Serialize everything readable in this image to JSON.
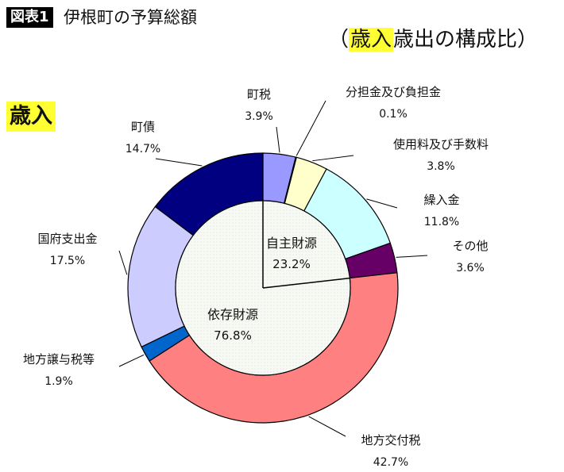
{
  "figure_label": "図表1",
  "title": "伊根町の予算総額",
  "subtitle": {
    "open_paren": "（",
    "highlight": "歳入",
    "rest": "歳出の構成比）"
  },
  "section_label": "歳入",
  "chart_data": {
    "type": "pie",
    "variant": "donut",
    "direction": "clockwise",
    "start_angle": "12 o'clock",
    "slices": [
      {
        "label": "町税",
        "value": 3.9,
        "value_label": "3.9%",
        "color": "#9999ff"
      },
      {
        "label": "分担金及び負担金",
        "value": 0.1,
        "value_label": "0.1%",
        "color": "#993366"
      },
      {
        "label": "使用料及び手数料",
        "value": 3.8,
        "value_label": "3.8%",
        "color": "#ffffcc"
      },
      {
        "label": "繰入金",
        "value": 11.8,
        "value_label": "11.8%",
        "color": "#ccffff"
      },
      {
        "label": "その他",
        "value": 3.6,
        "value_label": "3.6%",
        "color": "#660066"
      },
      {
        "label": "地方交付税",
        "value": 42.7,
        "value_label": "42.7%",
        "color": "#ff8080"
      },
      {
        "label": "地方譲与税等",
        "value": 1.9,
        "value_label": "1.9%",
        "color": "#0066cc"
      },
      {
        "label": "国府支出金",
        "value": 17.5,
        "value_label": "17.5%",
        "color": "#ccccff"
      },
      {
        "label": "町債",
        "value": 14.7,
        "value_label": "14.7%",
        "color": "#000080"
      }
    ],
    "inner_groups": [
      {
        "label": "自主財源",
        "value": 23.2,
        "value_label": "23.2%"
      },
      {
        "label": "依存財源",
        "value": 76.8,
        "value_label": "76.8%"
      }
    ],
    "inner_fill": "#f5f8f2"
  }
}
